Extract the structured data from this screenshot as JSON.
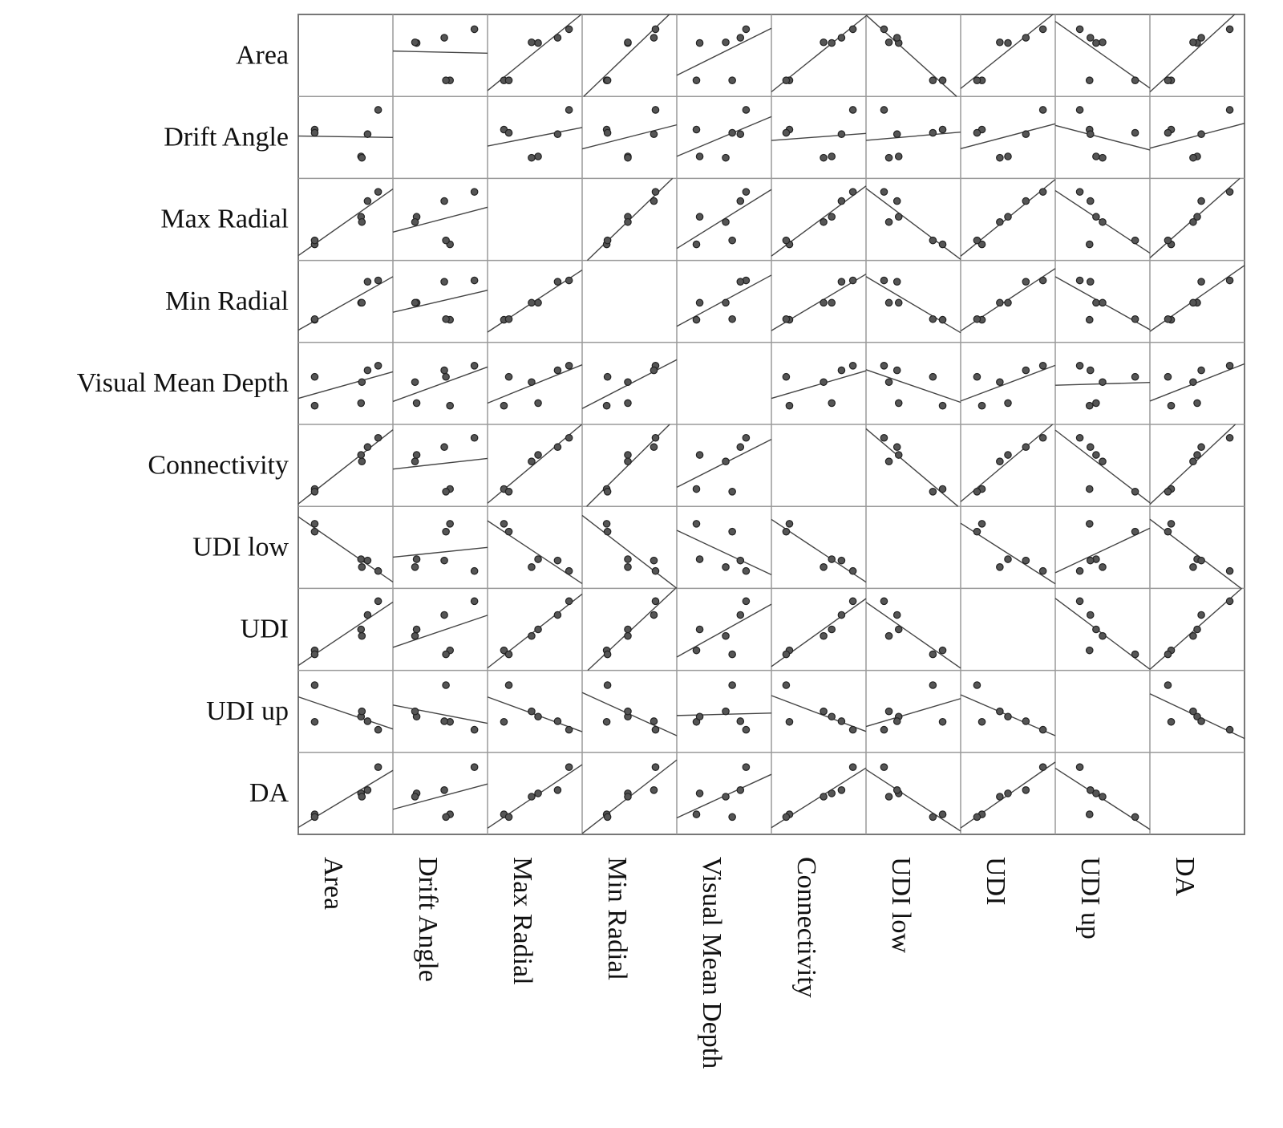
{
  "chart_data": {
    "type": "scatter",
    "subtype": "scatterplot-matrix",
    "title": "",
    "variables": [
      "Area",
      "Drift Angle",
      "Max Radial",
      "Min Radial",
      "Visual Mean Depth",
      "Connectivity",
      "UDI low",
      "UDI",
      "UDI up",
      "DA"
    ],
    "n_observations": 6,
    "value_scale": [
      0,
      1
    ],
    "observations": [
      {
        "Area": 0.12,
        "Drift Angle": 0.62,
        "Max Radial": 0.12,
        "Min Radial": 0.22,
        "Visual Mean Depth": 0.16,
        "Connectivity": 0.14,
        "UDI low": 0.86,
        "UDI": 0.18,
        "UDI up": 0.34,
        "DA": 0.18
      },
      {
        "Area": 0.69,
        "Drift Angle": 0.21,
        "Max Radial": 0.54,
        "Min Radial": 0.48,
        "Visual Mean Depth": 0.2,
        "Connectivity": 0.66,
        "UDI low": 0.32,
        "UDI": 0.5,
        "UDI up": 0.42,
        "DA": 0.5
      },
      {
        "Area": 0.9,
        "Drift Angle": 0.92,
        "Max Radial": 0.92,
        "Min Radial": 0.82,
        "Visual Mean Depth": 0.77,
        "Connectivity": 0.92,
        "UDI low": 0.14,
        "UDI": 0.93,
        "UDI up": 0.22,
        "DA": 0.9
      },
      {
        "Area": 0.12,
        "Drift Angle": 0.57,
        "Max Radial": 0.18,
        "Min Radial": 0.23,
        "Visual Mean Depth": 0.6,
        "Connectivity": 0.1,
        "UDI low": 0.74,
        "UDI": 0.12,
        "UDI up": 0.9,
        "DA": 0.14
      },
      {
        "Area": 0.77,
        "Drift Angle": 0.55,
        "Max Radial": 0.78,
        "Min Radial": 0.8,
        "Visual Mean Depth": 0.7,
        "Connectivity": 0.78,
        "UDI low": 0.3,
        "UDI": 0.72,
        "UDI up": 0.35,
        "DA": 0.55
      },
      {
        "Area": 0.7,
        "Drift Angle": 0.19,
        "Max Radial": 0.46,
        "Min Radial": 0.48,
        "Visual Mean Depth": 0.52,
        "Connectivity": 0.56,
        "UDI low": 0.2,
        "UDI": 0.4,
        "UDI up": 0.5,
        "DA": 0.45
      }
    ],
    "diagonal": "empty",
    "fit": "least-squares line per panel",
    "grid": true,
    "legend": "none"
  }
}
